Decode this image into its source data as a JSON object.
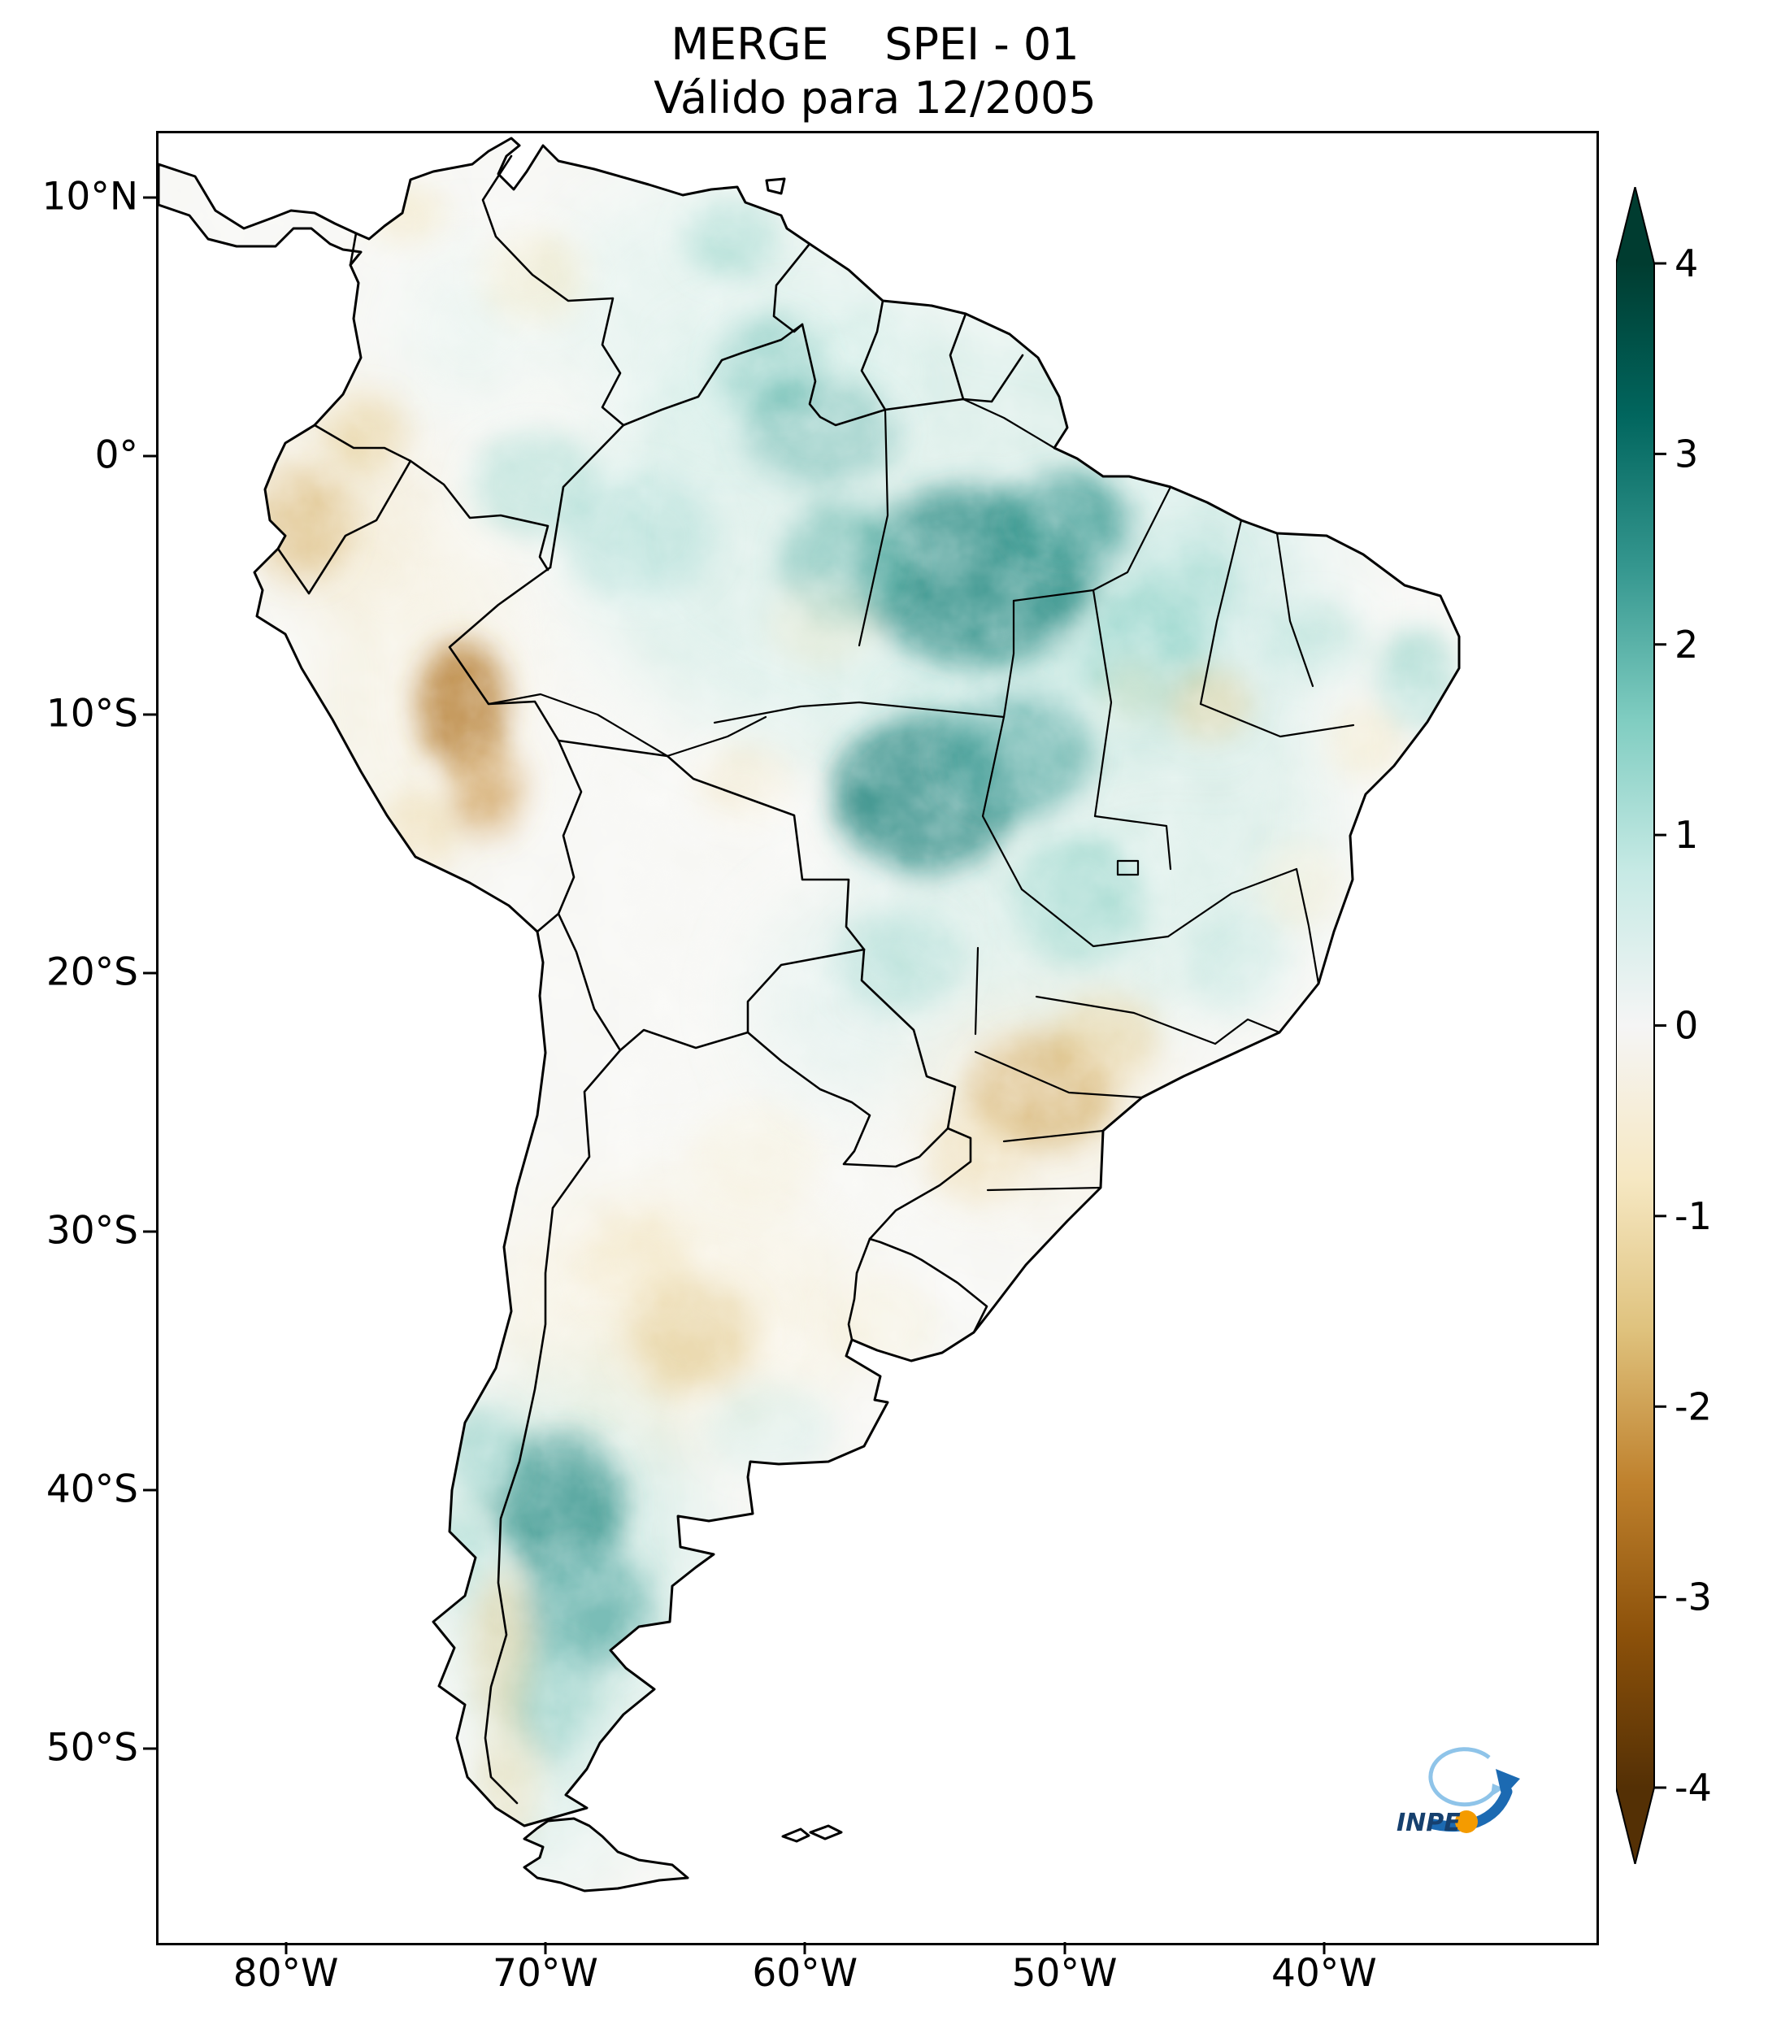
{
  "figure": {
    "title_line1": "MERGE    SPEI - 01",
    "title_line2": "Válido para 12/2005"
  },
  "axes": {
    "y_ticks": [
      {
        "label": "10°N",
        "lat": 10
      },
      {
        "label": "0°",
        "lat": 0
      },
      {
        "label": "10°S",
        "lat": -10
      },
      {
        "label": "20°S",
        "lat": -20
      },
      {
        "label": "30°S",
        "lat": -30
      },
      {
        "label": "40°S",
        "lat": -40
      },
      {
        "label": "50°S",
        "lat": -50
      }
    ],
    "x_ticks": [
      {
        "label": "80°W",
        "lon": -80
      },
      {
        "label": "70°W",
        "lon": -70
      },
      {
        "label": "60°W",
        "lon": -60
      },
      {
        "label": "50°W",
        "lon": -50
      },
      {
        "label": "40°W",
        "lon": -40
      }
    ]
  },
  "colorbar": {
    "tick_labels": [
      "4",
      "3",
      "2",
      "1",
      "0",
      "-1",
      "-2",
      "-3",
      "-4"
    ],
    "tick_values": [
      4,
      3,
      2,
      1,
      0,
      -1,
      -2,
      -3,
      -4
    ],
    "vmin": -4,
    "vmax": 4,
    "colormap": "BrBG",
    "extend": "both"
  },
  "logo": {
    "label": "INPE"
  },
  "chart_data": {
    "type": "heatmap",
    "title": "MERGE    SPEI - 01",
    "subtitle": "Válido para 12/2005",
    "dataset": "MERGE",
    "variable": "SPEI-01",
    "valid_date": "12/2005",
    "region": "South America",
    "value_range": [
      -4,
      4
    ],
    "lon_range": [
      -85,
      -29.6
    ],
    "lat_range": [
      -57.4,
      12.58
    ],
    "colormap_stops": [
      {
        "value": -4.0,
        "color": "#543005"
      },
      {
        "value": -3.2,
        "color": "#8c510a"
      },
      {
        "value": -2.4,
        "color": "#bf812d"
      },
      {
        "value": -1.6,
        "color": "#dfc27d"
      },
      {
        "value": -0.8,
        "color": "#f6e8c3"
      },
      {
        "value": 0.0,
        "color": "#f5f5f5"
      },
      {
        "value": 0.8,
        "color": "#c7eae5"
      },
      {
        "value": 1.6,
        "color": "#80cdc1"
      },
      {
        "value": 2.4,
        "color": "#35978f"
      },
      {
        "value": 3.2,
        "color": "#01665e"
      },
      {
        "value": 4.0,
        "color": "#003c30"
      }
    ],
    "blob_fields": [
      "lon",
      "lat",
      "rx_deg",
      "ry_deg",
      "spei_value",
      "opacity"
    ],
    "wash_blobs": [
      [
        -55,
        -3,
        14,
        9,
        1.0,
        0.4
      ],
      [
        -49,
        -14,
        9,
        8,
        1.1,
        0.35
      ],
      [
        -63,
        6,
        7,
        5,
        0.8,
        0.35
      ],
      [
        -69,
        -43,
        5,
        8,
        1.2,
        0.4
      ],
      [
        -65,
        -33,
        7,
        5,
        -0.8,
        0.35
      ],
      [
        -75,
        -9,
        4,
        7,
        -0.8,
        0.3
      ],
      [
        -51,
        -25,
        5,
        4,
        -1.0,
        0.3
      ],
      [
        -78,
        -1.5,
        3,
        4,
        -1.2,
        0.35
      ],
      [
        -44,
        -6,
        5,
        5,
        0.9,
        0.3
      ],
      [
        -58,
        -21,
        4,
        4,
        0.9,
        0.3
      ],
      [
        -73,
        5,
        2.5,
        3,
        0.8,
        0.3
      ],
      [
        -70,
        -52.5,
        3,
        2.5,
        1.0,
        0.35
      ]
    ],
    "spot_blobs": [
      [
        -53.5,
        -4.5,
        4.5,
        3.5,
        2.6,
        0.8
      ],
      [
        -50,
        -2.5,
        2.5,
        2,
        2.4,
        0.7
      ],
      [
        -55.5,
        -13,
        3.5,
        3,
        2.7,
        0.8
      ],
      [
        -52,
        -11.5,
        3,
        2.5,
        2.2,
        0.6
      ],
      [
        -58.5,
        -4,
        2.5,
        2.5,
        2.0,
        0.55
      ],
      [
        -61.5,
        3.5,
        2,
        2,
        1.8,
        0.5
      ],
      [
        -59.5,
        1,
        3,
        2,
        2.0,
        0.5
      ],
      [
        -47,
        -7.5,
        2.5,
        2.5,
        1.6,
        0.5
      ],
      [
        -45.5,
        -5,
        2,
        2,
        1.4,
        0.45
      ],
      [
        -49.5,
        -17,
        2.5,
        2.5,
        1.5,
        0.5
      ],
      [
        -56.5,
        -19.5,
        2.5,
        2,
        1.3,
        0.45
      ],
      [
        -69.5,
        -40.5,
        2.5,
        2.8,
        2.5,
        0.8
      ],
      [
        -68.5,
        -44.5,
        2.5,
        2.5,
        2.2,
        0.65
      ],
      [
        -70,
        -48,
        1.8,
        2.2,
        1.8,
        0.55
      ],
      [
        -66.5,
        -3,
        3,
        2.5,
        1.3,
        0.4
      ],
      [
        -70.5,
        -1,
        2.5,
        2,
        1.5,
        0.45
      ],
      [
        -36.5,
        -8.5,
        1.5,
        2,
        1.6,
        0.5
      ],
      [
        -40.5,
        -7,
        2,
        1.5,
        1.2,
        0.4
      ],
      [
        -63,
        8.5,
        1.8,
        1.5,
        1.5,
        0.45
      ],
      [
        -72.5,
        -38.5,
        1.5,
        1.8,
        1.7,
        0.5
      ],
      [
        -43.5,
        -19.5,
        2,
        2,
        1.0,
        0.35
      ],
      [
        -61.5,
        -37.5,
        2.5,
        1.8,
        0.9,
        0.35
      ],
      [
        -73.5,
        -42.5,
        1.2,
        1.8,
        1.4,
        0.45
      ],
      [
        -73.3,
        -9.5,
        1.8,
        2.5,
        -2.6,
        0.8
      ],
      [
        -72.3,
        -12.8,
        1.4,
        1.8,
        -2.2,
        0.65
      ],
      [
        -79.5,
        -2.5,
        1.8,
        2.2,
        -1.8,
        0.6
      ],
      [
        -77,
        1,
        1.5,
        1.5,
        -1.4,
        0.5
      ],
      [
        -75.5,
        9.5,
        1.5,
        1.2,
        -1.0,
        0.45
      ],
      [
        -70.5,
        7,
        2,
        1.8,
        -0.9,
        0.4
      ],
      [
        -51,
        -24.5,
        2.8,
        2.2,
        -1.9,
        0.65
      ],
      [
        -48.5,
        -22.5,
        2,
        1.8,
        -1.4,
        0.5
      ],
      [
        -53.5,
        -27,
        1.8,
        1.8,
        -1.2,
        0.45
      ],
      [
        -64.5,
        -34,
        2.5,
        2.2,
        -1.5,
        0.55
      ],
      [
        -66.5,
        -31,
        2,
        2,
        -1.0,
        0.4
      ],
      [
        -71.8,
        -46,
        1.2,
        3,
        -1.3,
        0.5
      ],
      [
        -71.5,
        -51,
        1.2,
        2.5,
        -1.1,
        0.45
      ],
      [
        -44.5,
        -9.5,
        1.6,
        1.4,
        -1.4,
        0.5
      ],
      [
        -47.5,
        -9,
        1.2,
        1.2,
        -0.9,
        0.35
      ],
      [
        -59.5,
        -6.5,
        2,
        1.6,
        -0.8,
        0.3
      ],
      [
        -62.5,
        -12.5,
        1.8,
        1.5,
        -0.9,
        0.35
      ],
      [
        -57,
        -33.5,
        2,
        1.8,
        -0.7,
        0.3
      ],
      [
        -62,
        -27,
        2.5,
        2,
        -0.7,
        0.3
      ],
      [
        -41,
        -16.5,
        1.6,
        1.6,
        -0.8,
        0.35
      ],
      [
        -38.5,
        -11,
        1.4,
        1.4,
        -0.9,
        0.4
      ],
      [
        -75,
        -14.5,
        1.5,
        1.5,
        -1.2,
        0.45
      ]
    ]
  }
}
